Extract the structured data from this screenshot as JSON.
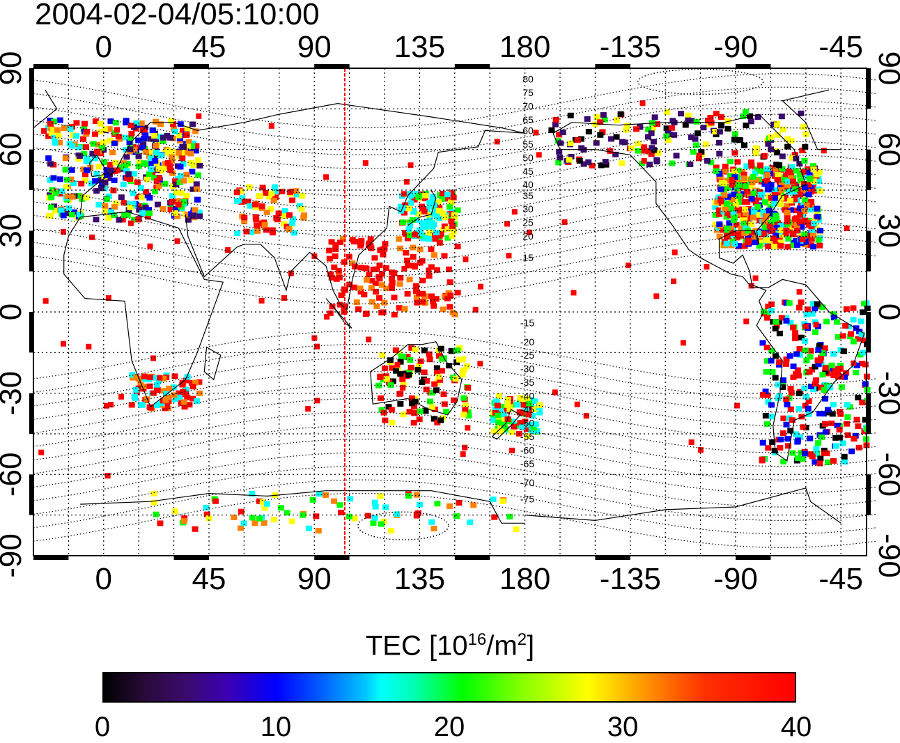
{
  "title": "2004-02-04/05:10:00",
  "map": {
    "lon_labels": [
      "0",
      "45",
      "90",
      "135",
      "180",
      "-135",
      "-90",
      "-45"
    ],
    "lat_labels": [
      "90",
      "60",
      "30",
      "0",
      "-30",
      "-60",
      "-90"
    ],
    "north_contour_labels": [
      "80",
      "75",
      "70",
      "65",
      "60",
      "55",
      "50",
      "45",
      "40",
      "35",
      "30",
      "25",
      "20",
      "15"
    ],
    "south_contour_labels": [
      "-15",
      "-20",
      "-25",
      "-30",
      "-35",
      "-40",
      "-45",
      "-50",
      "-55",
      "-60",
      "-65",
      "-70",
      "-75"
    ],
    "marker_longitude": 103,
    "marker_color": "#ff0000"
  },
  "colorbar": {
    "title_prefix": "TEC  [10",
    "title_sup1": "16",
    "title_mid": "/m",
    "title_sup2": "2",
    "title_suffix": "]",
    "tick_labels": [
      "0",
      "10",
      "20",
      "30",
      "40"
    ],
    "range": [
      0,
      40
    ],
    "colors": [
      "#000000",
      "#3a0a6e",
      "#0000ff",
      "#00ffff",
      "#00ff00",
      "#ffff00",
      "#ff8000",
      "#ff0000"
    ]
  }
}
